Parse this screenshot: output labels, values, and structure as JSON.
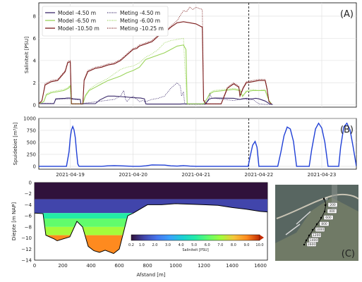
{
  "colors": {
    "model_4_50": "#3b2a6b",
    "model_6_50": "#9ad45a",
    "model_10_50": "#7a1a1a",
    "meting_4_50": "#3b2a6b",
    "meting_6_00": "#9ad45a",
    "meting_10_25": "#7a1a1a",
    "discharge": "#1f3fd6",
    "sea": "#46546a",
    "land": "#707a66"
  },
  "chart_data": [
    {
      "panel": "(A)",
      "type": "line",
      "ylabel": "Saliniteit [PSU]",
      "ylim": [
        -0.2,
        9.2
      ],
      "yticks": [
        "0",
        "2",
        "4",
        "6",
        "8"
      ],
      "grid": true,
      "legend_position": "top-left",
      "series": [
        {
          "name": "Model -4.50 m",
          "style": "solid",
          "x": [
            0,
            0.24,
            0.27,
            0.42,
            0.45,
            0.5,
            0.55,
            0.66,
            0.67,
            0.7,
            0.72,
            0.9,
            0.97,
            1.06,
            1.1,
            1.2,
            1.3,
            1.38,
            1.5,
            1.62,
            1.68,
            1.7,
            1.72,
            2.1,
            2.22,
            2.25,
            2.3,
            2.65,
            2.7,
            2.75,
            2.8,
            3.1,
            3.2,
            3.25,
            3.3,
            3.35,
            3.4,
            3.45,
            3.5,
            3.6,
            3.67,
            3.7,
            3.72
          ],
          "y": [
            0.12,
            0.12,
            0.55,
            0.6,
            0.62,
            0.62,
            0.55,
            0.5,
            0.08,
            0.08,
            0.12,
            0.12,
            0.45,
            0.7,
            0.8,
            0.8,
            0.75,
            0.72,
            0.65,
            0.62,
            0.55,
            0.1,
            0.08,
            0.08,
            0.08,
            0.08,
            0.1,
            0.1,
            0.5,
            0.6,
            0.62,
            0.6,
            0.5,
            0.55,
            0.6,
            0.55,
            0.55,
            0.6,
            0.55,
            0.35,
            0.1,
            0.05,
            0.05
          ]
        },
        {
          "name": "Model -6.50 m",
          "style": "solid",
          "x": [
            0,
            0.08,
            0.12,
            0.2,
            0.3,
            0.4,
            0.47,
            0.5,
            0.52,
            0.7,
            0.74,
            0.8,
            0.9,
            1.0,
            1.1,
            1.2,
            1.3,
            1.4,
            1.5,
            1.6,
            1.7,
            2.0,
            2.1,
            2.2,
            2.3,
            2.34,
            2.36,
            2.5,
            2.62,
            2.68,
            2.72,
            2.78,
            3.1,
            3.2,
            3.24,
            3.3,
            3.4,
            3.5,
            3.6,
            3.66,
            3.7
          ],
          "y": [
            0.1,
            0.3,
            0.9,
            1.1,
            1.2,
            1.3,
            1.5,
            1.7,
            0.1,
            0.1,
            0.8,
            1.3,
            1.6,
            1.9,
            2.2,
            2.4,
            2.6,
            2.9,
            3.1,
            3.4,
            4.1,
            4.7,
            5.0,
            5.3,
            5.4,
            5.0,
            0.1,
            0.1,
            0.1,
            0.6,
            1.0,
            1.2,
            1.4,
            1.3,
            0.8,
            1.2,
            1.3,
            1.3,
            1.3,
            0.4,
            0.1
          ]
        },
        {
          "name": "Model -10.50 m",
          "style": "solid",
          "x": [
            0,
            0.05,
            0.1,
            0.2,
            0.3,
            0.42,
            0.46,
            0.5,
            0.52,
            0.7,
            0.72,
            0.78,
            0.9,
            1.0,
            1.1,
            1.2,
            1.3,
            1.4,
            1.5,
            1.56,
            1.6,
            1.7,
            1.8,
            1.9,
            2.0,
            2.1,
            2.2,
            2.3,
            2.4,
            2.5,
            2.6,
            2.62,
            2.66,
            2.9,
            2.95,
            3.0,
            3.1,
            3.18,
            3.2,
            3.25,
            3.3,
            3.4,
            3.5,
            3.6,
            3.63,
            3.66,
            3.7
          ],
          "y": [
            0.1,
            0.4,
            1.8,
            2.1,
            2.2,
            3.0,
            3.8,
            3.9,
            0.1,
            0.1,
            2.2,
            3.0,
            3.3,
            3.4,
            3.6,
            3.7,
            4.0,
            4.5,
            5.0,
            5.1,
            5.3,
            5.5,
            5.7,
            6.2,
            6.5,
            7.0,
            7.4,
            7.5,
            7.4,
            7.3,
            7.0,
            0.4,
            0.1,
            0.1,
            0.8,
            1.5,
            1.9,
            1.6,
            0.8,
            1.5,
            2.0,
            2.1,
            2.2,
            2.2,
            1.4,
            0.3,
            0.1
          ]
        },
        {
          "name": "Meting -4.50 m",
          "style": "dotted",
          "x": [
            0,
            0.24,
            0.27,
            0.42,
            0.45,
            0.5,
            0.55,
            0.66,
            0.67,
            0.7,
            0.72,
            1.2,
            1.3,
            1.35,
            1.38,
            1.4,
            1.45,
            1.5,
            1.6,
            1.65,
            1.7,
            1.8,
            1.9,
            2.0,
            2.1,
            2.2,
            2.25,
            2.27,
            2.3,
            2.32,
            2.35,
            2.65,
            2.7,
            2.72,
            2.75,
            2.8,
            3.1,
            3.2,
            3.25,
            3.3,
            3.35,
            3.4,
            3.45,
            3.5,
            3.6,
            3.67,
            3.7
          ],
          "y": [
            0.15,
            0.15,
            0.5,
            0.55,
            0.55,
            0.55,
            0.5,
            0.45,
            0.1,
            0.1,
            0.15,
            0.5,
            0.8,
            1.3,
            0.5,
            0.3,
            0.6,
            0.8,
            0.3,
            0.4,
            0.3,
            0.5,
            0.6,
            0.8,
            1.5,
            2.0,
            1.7,
            0.8,
            1.2,
            0.1,
            0.05,
            0.05,
            0.4,
            1.0,
            0.6,
            0.6,
            0.4,
            0.5,
            0.6,
            0.5,
            0.45,
            0.5,
            0.3,
            0.1,
            0.05,
            0.05,
            0.05
          ]
        },
        {
          "name": "Meting -6.00 m",
          "style": "dotted",
          "x": [
            0,
            0.08,
            0.12,
            0.2,
            0.3,
            0.4,
            0.47,
            0.5,
            0.52,
            0.7,
            0.74,
            0.8,
            0.9,
            1.0,
            1.1,
            1.2,
            1.3,
            1.4,
            1.5,
            1.6,
            1.7,
            1.8,
            1.9,
            2.0,
            2.1,
            2.2,
            2.3,
            2.32,
            2.36,
            2.5,
            2.62,
            2.68,
            2.72,
            2.78,
            3.1,
            3.2,
            3.24,
            3.3,
            3.4,
            3.5,
            3.6,
            3.66,
            3.7
          ],
          "y": [
            0.1,
            0.3,
            1.0,
            1.2,
            1.3,
            1.4,
            1.6,
            1.8,
            0.1,
            0.1,
            0.9,
            1.4,
            1.8,
            2.1,
            2.4,
            2.8,
            3.2,
            3.4,
            3.5,
            3.8,
            4.3,
            4.6,
            5.0,
            5.6,
            5.8,
            5.9,
            6.0,
            3.7,
            0.1,
            0.1,
            0.1,
            0.6,
            1.1,
            1.3,
            1.5,
            1.4,
            0.7,
            1.3,
            1.4,
            1.3,
            1.4,
            0.4,
            0.1
          ]
        },
        {
          "name": "Meting -10.25 m",
          "style": "dotted",
          "x": [
            0,
            0.05,
            0.1,
            0.2,
            0.3,
            0.42,
            0.46,
            0.5,
            0.52,
            0.7,
            0.72,
            0.78,
            0.9,
            1.0,
            1.1,
            1.2,
            1.3,
            1.4,
            1.5,
            1.56,
            1.6,
            1.7,
            1.8,
            1.9,
            2.0,
            2.1,
            2.2,
            2.3,
            2.35,
            2.4,
            2.45,
            2.5,
            2.55,
            2.6,
            2.62,
            2.66,
            2.9,
            2.95,
            3.0,
            3.1,
            3.18,
            3.2,
            3.25,
            3.3,
            3.4,
            3.5,
            3.6,
            3.63,
            3.66,
            3.7
          ],
          "y": [
            0.1,
            0.4,
            1.9,
            2.2,
            2.3,
            3.1,
            3.9,
            4.0,
            0.1,
            0.1,
            2.3,
            3.1,
            3.4,
            3.5,
            3.7,
            3.8,
            4.1,
            4.6,
            5.1,
            5.2,
            5.4,
            5.6,
            5.8,
            6.3,
            6.6,
            7.1,
            7.6,
            8.5,
            8.4,
            8.8,
            8.6,
            8.8,
            8.7,
            8.6,
            0.5,
            0.1,
            0.1,
            0.9,
            1.6,
            2.0,
            1.7,
            0.9,
            1.6,
            2.1,
            2.2,
            2.3,
            2.3,
            1.5,
            0.3,
            0.1
          ]
        }
      ]
    },
    {
      "panel": "(B)",
      "type": "line",
      "ylabel": "Spuidebiet [m³/s]",
      "ylim": [
        -60,
        1000
      ],
      "yticks": [
        "0",
        "250",
        "500",
        "750",
        "1000"
      ],
      "grid": true,
      "xticklabels": [
        "2021-04-19",
        "2021-04-20",
        "2021-04-21",
        "2021-04-22",
        "2021-04-23"
      ],
      "x_tick_positions_days": [
        0.5,
        1.5,
        2.5,
        3.5,
        4.5
      ],
      "vline_day": 3.34,
      "series": [
        {
          "name": "",
          "x": [
            0,
            0.44,
            0.48,
            0.5,
            0.52,
            0.54,
            0.56,
            0.58,
            0.6,
            0.62,
            0.64,
            1.0,
            1.1,
            1.2,
            1.3,
            1.4,
            1.5,
            1.6,
            1.7,
            1.8,
            2.0,
            2.1,
            2.2,
            2.3,
            2.4,
            2.5,
            3.33,
            3.36,
            3.4,
            3.44,
            3.47,
            3.5,
            3.8,
            3.85,
            3.9,
            3.95,
            4.0,
            4.05,
            4.1,
            4.3,
            4.34,
            4.4,
            4.45,
            4.5,
            4.55,
            4.6,
            4.77,
            4.8,
            4.85,
            4.9,
            4.95,
            5.0,
            5.05
          ],
          "y": [
            0,
            0,
            300,
            600,
            760,
            830,
            760,
            600,
            300,
            50,
            0,
            0,
            10,
            15,
            10,
            5,
            0,
            0,
            10,
            30,
            25,
            10,
            5,
            15,
            5,
            0,
            0,
            200,
            440,
            520,
            400,
            0,
            0,
            300,
            640,
            820,
            780,
            520,
            0,
            0,
            350,
            780,
            900,
            800,
            500,
            0,
            0,
            400,
            820,
            900,
            760,
            400,
            0
          ]
        }
      ]
    },
    {
      "panel": "(C)",
      "type": "heatmap",
      "ylabel": "Diepte [m NAP]",
      "xlabel": "Afstand [m]",
      "xlim": [
        0,
        1650
      ],
      "ylim": [
        -14,
        0
      ],
      "xticks": [
        "0",
        "200",
        "400",
        "600",
        "800",
        "1000",
        "1200",
        "1400",
        "1600"
      ],
      "yticks": [
        "0",
        "−2",
        "−4",
        "−6",
        "−8",
        "−10",
        "−12",
        "−14"
      ],
      "colorbar": {
        "label": "Saliniteit [PSU]",
        "ticks": [
          "0.2",
          "1.0",
          "2.0",
          "3.0",
          "4.0",
          "5.0",
          "6.0",
          "7.0",
          "8.0",
          "9.0",
          "10.0"
        ],
        "range": [
          0.2,
          10.0
        ]
      },
      "bottom_profile": {
        "x": [
          0,
          60,
          80,
          140,
          160,
          250,
          300,
          340,
          380,
          420,
          460,
          500,
          560,
          600,
          630,
          660,
          700,
          800,
          900,
          1000,
          1100,
          1200,
          1300,
          1400,
          1500,
          1600,
          1650
        ],
        "depth": [
          -5.5,
          -5.6,
          -9.5,
          -10.2,
          -10.5,
          -9.8,
          -7.0,
          -8.0,
          -11.5,
          -12.3,
          -12.6,
          -12.2,
          -12.8,
          -12.0,
          -9.0,
          -6.0,
          -5.5,
          -4.0,
          -4.0,
          -3.8,
          -3.9,
          -4.0,
          -4.1,
          -4.5,
          -4.8,
          -5.2,
          -5.3
        ]
      },
      "salinity_layers": [
        {
          "top": 0,
          "bottom": -3.0,
          "value": 0.3
        },
        {
          "top": -3.0,
          "bottom": -4.2,
          "value": 0.9
        },
        {
          "top": -4.2,
          "bottom": -5.5,
          "value": 1.4
        },
        {
          "top": -5.5,
          "bottom": -6.5,
          "value": 5.0
        },
        {
          "top": -6.5,
          "bottom": -8.0,
          "value": 6.2
        },
        {
          "top": -8.0,
          "bottom": -9.5,
          "value": 7.2
        },
        {
          "top": -9.5,
          "bottom": -14,
          "value": 8.8
        }
      ]
    }
  ],
  "map": {
    "panel_label": "(C)",
    "distance_labels": [
      "0",
      "200",
      "400",
      "600",
      "800",
      "1000",
      "1200",
      "1400",
      "1600"
    ]
  }
}
